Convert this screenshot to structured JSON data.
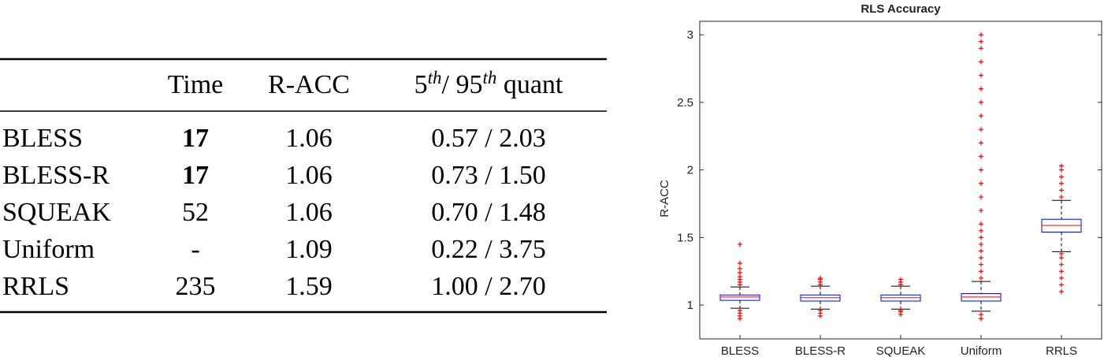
{
  "table": {
    "header": [
      "",
      "Time",
      "R-ACC"
    ],
    "quant_header": [
      {
        "text": "5",
        "sup": false
      },
      {
        "text": "th",
        "sup": true
      },
      {
        "text": "/ 95",
        "sup": false
      },
      {
        "text": "th",
        "sup": true
      },
      {
        "text": " quant",
        "sup": false
      }
    ],
    "rows": [
      [
        "BLESS",
        "17",
        "1.06",
        "0.57 / 2.03"
      ],
      [
        "BLESS-R",
        "17",
        "1.06",
        "0.73 / 1.50"
      ],
      [
        "SQUEAK",
        "52",
        "1.06",
        "0.70 / 1.48"
      ],
      [
        "Uniform",
        "-",
        "1.09",
        "0.22 / 3.75"
      ],
      [
        "RRLS",
        "235",
        "1.59",
        "1.00 / 2.70"
      ]
    ],
    "bold_cells": [
      [
        0,
        1
      ],
      [
        1,
        1
      ]
    ]
  },
  "chart_data": {
    "type": "box",
    "title": "RLS Accuracy",
    "y_label": "R-ACC",
    "categories": [
      "BLESS",
      "BLESS-R",
      "SQUEAK",
      "Uniform",
      "RRLS"
    ],
    "box_color": "#0000ff",
    "median_color": "#ff0000",
    "flier_color": "#ff0000",
    "ylim": [
      0.75,
      3.1
    ],
    "yticks": [
      1,
      1.5,
      2,
      2.5,
      3
    ],
    "boxes": [
      {
        "whislo": 0.977,
        "q1": 1.035,
        "med": 1.06,
        "q3": 1.075,
        "whishi": 1.134,
        "fliers": [
          0.9,
          0.92,
          0.94,
          0.96,
          1.15,
          1.17,
          1.19,
          1.21,
          1.24,
          1.27,
          1.31,
          1.45
        ]
      },
      {
        "whislo": 0.97,
        "q1": 1.03,
        "med": 1.055,
        "q3": 1.075,
        "whishi": 1.14,
        "fliers": [
          0.92,
          0.94,
          0.96,
          1.15,
          1.17,
          1.19,
          1.2
        ]
      },
      {
        "whislo": 0.97,
        "q1": 1.03,
        "med": 1.055,
        "q3": 1.075,
        "whishi": 1.14,
        "fliers": [
          0.93,
          0.95,
          0.96,
          1.15,
          1.17,
          1.19
        ]
      },
      {
        "whislo": 0.955,
        "q1": 1.03,
        "med": 1.06,
        "q3": 1.085,
        "whishi": 1.175,
        "fliers": [
          0.9,
          0.93,
          1.2,
          1.25,
          1.3,
          1.35,
          1.4,
          1.45,
          1.5,
          1.55,
          1.6,
          1.7,
          1.8,
          1.9,
          2.0,
          2.1,
          2.2,
          2.3,
          2.4,
          2.5,
          2.6,
          2.7,
          2.8,
          2.9,
          2.95,
          3.0
        ]
      },
      {
        "whislo": 1.395,
        "q1": 1.54,
        "med": 1.59,
        "q3": 1.635,
        "whishi": 1.775,
        "fliers": [
          1.1,
          1.15,
          1.2,
          1.25,
          1.3,
          1.35,
          1.38,
          1.8,
          1.85,
          1.9,
          1.95,
          2.0,
          2.03
        ]
      }
    ]
  }
}
